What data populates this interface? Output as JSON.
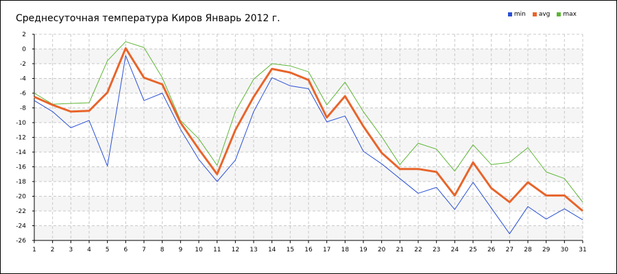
{
  "chart_data": {
    "type": "line",
    "title": "Среднесуточная температура Киров  Январь 2012 г.",
    "xlabel": "",
    "ylabel": "",
    "x": [
      1,
      2,
      3,
      4,
      5,
      6,
      7,
      8,
      9,
      10,
      11,
      12,
      13,
      14,
      15,
      16,
      17,
      18,
      19,
      20,
      21,
      22,
      23,
      24,
      25,
      26,
      27,
      28,
      29,
      30,
      31
    ],
    "ylim": [
      -26,
      2
    ],
    "yticks": [
      2,
      0,
      -2,
      -4,
      -6,
      -8,
      -10,
      -12,
      -14,
      -16,
      -18,
      -20,
      -22,
      -24,
      -26
    ],
    "grid": true,
    "legend_position": "top-right",
    "series": [
      {
        "name": "min",
        "color": "#2a4fd4",
        "values": [
          -7.0,
          -8.5,
          -10.7,
          -9.7,
          -15.9,
          -0.9,
          -7.0,
          -6.0,
          -10.9,
          -15.0,
          -18.0,
          -15.1,
          -8.5,
          -3.9,
          -5.0,
          -5.4,
          -9.9,
          -9.1,
          -13.9,
          -15.6,
          -17.6,
          -19.6,
          -18.8,
          -21.8,
          -18.1,
          -21.6,
          -25.1,
          -21.4,
          -23.1,
          -21.7,
          -23.2
        ]
      },
      {
        "name": "avg",
        "color": "#e8642a",
        "values": [
          -6.5,
          -7.6,
          -8.5,
          -8.4,
          -5.9,
          0.1,
          -3.9,
          -4.8,
          -10.0,
          -13.6,
          -17.0,
          -11.0,
          -6.5,
          -2.7,
          -3.2,
          -4.2,
          -9.3,
          -6.4,
          -10.5,
          -14.1,
          -16.3,
          -16.3,
          -16.7,
          -19.9,
          -15.4,
          -18.9,
          -20.8,
          -18.1,
          -19.9,
          -19.9,
          -22.0
        ]
      },
      {
        "name": "max",
        "color": "#5cb534",
        "values": [
          -6.0,
          -7.5,
          -7.4,
          -7.3,
          -1.6,
          1.0,
          0.2,
          -3.9,
          -9.7,
          -12.2,
          -15.8,
          -8.5,
          -4.1,
          -2.0,
          -2.3,
          -3.1,
          -7.6,
          -4.5,
          -8.5,
          -11.9,
          -15.7,
          -12.8,
          -13.6,
          -16.6,
          -13.0,
          -15.7,
          -15.4,
          -13.4,
          -16.7,
          -17.6,
          -20.8
        ]
      }
    ]
  }
}
